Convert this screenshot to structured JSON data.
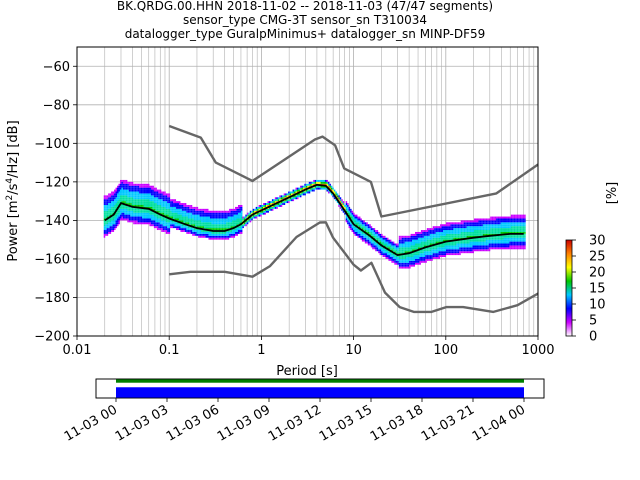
{
  "chart_data": {
    "type": "heatmap",
    "title_lines": [
      "BK.QRDG.00.HHN   2018-11-02 -- 2018-11-03  (47/47 segments)",
      "sensor_type CMG-3T sensor_sn T310034",
      "datalogger_type GuralpMinimus+ datalogger_sn MINP-DF59"
    ],
    "xlabel": "Period [s]",
    "ylabel_pre": "Power [m",
    "ylabel_sup1": "2",
    "ylabel_mid": "/s",
    "ylabel_sup2": "4",
    "ylabel_post": "/Hz] [dB]",
    "x_scale": "log",
    "xlim": [
      0.01,
      1000
    ],
    "ylim": [
      -200,
      -50
    ],
    "x_ticks": [
      0.01,
      0.1,
      1,
      10,
      100,
      1000
    ],
    "x_tick_labels": [
      "0.01",
      "0.1",
      "1",
      "10",
      "100",
      "1000"
    ],
    "y_ticks": [
      -200,
      -180,
      -160,
      -140,
      -120,
      -100,
      -80,
      -60
    ],
    "y_tick_labels": [
      "−200",
      "−180",
      "−160",
      "−140",
      "−120",
      "−100",
      "−80",
      "−60"
    ],
    "grid": true,
    "colorbar": {
      "label": "[%]",
      "range": [
        0,
        30
      ],
      "ticks": [
        0,
        5,
        10,
        15,
        20,
        25,
        30
      ],
      "tick_labels": [
        "0",
        "5",
        "10",
        "15",
        "20",
        "25",
        "30"
      ],
      "colors": [
        "#ffffff",
        "#cc00ff",
        "#0000ff",
        "#00c8ff",
        "#00c800",
        "#ffff00",
        "#ff8000",
        "#cc0000"
      ]
    },
    "noise_models": [
      {
        "name": "NHNM",
        "color": "#666666",
        "points": [
          [
            0.1,
            -91
          ],
          [
            0.22,
            -97
          ],
          [
            0.32,
            -110
          ],
          [
            0.8,
            -119.5
          ],
          [
            3.8,
            -98
          ],
          [
            4.6,
            -96.5
          ],
          [
            6.3,
            -101
          ],
          [
            7.9,
            -113
          ],
          [
            15.4,
            -120
          ],
          [
            20,
            -138
          ],
          [
            354,
            -126
          ],
          [
            1000,
            -111
          ]
        ]
      },
      {
        "name": "NLNM",
        "color": "#666666",
        "points": [
          [
            0.1,
            -168
          ],
          [
            0.17,
            -166.7
          ],
          [
            0.4,
            -166.7
          ],
          [
            0.8,
            -169.2
          ],
          [
            1.24,
            -163.7
          ],
          [
            2.4,
            -148.6
          ],
          [
            4.3,
            -141.1
          ],
          [
            5,
            -141
          ],
          [
            6,
            -149
          ],
          [
            10,
            -163
          ],
          [
            12,
            -166
          ],
          [
            15.6,
            -162
          ],
          [
            21.9,
            -177.5
          ],
          [
            31.6,
            -185
          ],
          [
            45,
            -187.5
          ],
          [
            70,
            -187.5
          ],
          [
            101,
            -185
          ],
          [
            154,
            -185
          ],
          [
            328,
            -187.5
          ],
          [
            600,
            -184
          ],
          [
            1000,
            -178
          ]
        ]
      }
    ],
    "mean_curve": {
      "color": "#000000",
      "points": [
        [
          0.02,
          -140
        ],
        [
          0.025,
          -137
        ],
        [
          0.03,
          -131
        ],
        [
          0.04,
          -133
        ],
        [
          0.06,
          -134
        ],
        [
          0.08,
          -137
        ],
        [
          0.1,
          -139
        ],
        [
          0.15,
          -142
        ],
        [
          0.2,
          -144
        ],
        [
          0.3,
          -145.5
        ],
        [
          0.4,
          -145.5
        ],
        [
          0.5,
          -144
        ],
        [
          0.6,
          -142
        ],
        [
          0.8,
          -137
        ],
        [
          1.2,
          -133
        ],
        [
          2,
          -128
        ],
        [
          3,
          -124
        ],
        [
          4,
          -121.5
        ],
        [
          5,
          -122
        ],
        [
          6,
          -126
        ],
        [
          8,
          -135
        ],
        [
          10,
          -142
        ],
        [
          15,
          -148
        ],
        [
          20,
          -153
        ],
        [
          30,
          -158
        ],
        [
          40,
          -157
        ],
        [
          60,
          -154
        ],
        [
          100,
          -151
        ],
        [
          200,
          -149
        ],
        [
          300,
          -148
        ],
        [
          500,
          -147
        ],
        [
          700,
          -147
        ]
      ]
    },
    "timeline": {
      "tick_labels": [
        "11-03 00",
        "11-03 03",
        "11-03 06",
        "11-03 09",
        "11-03 12",
        "11-03 15",
        "11-03 18",
        "11-03 21",
        "11-04 00"
      ],
      "bars": [
        {
          "color": "#008000",
          "from": 0,
          "to": 24
        },
        {
          "color": "#0000ff",
          "from": 0,
          "to": 24
        }
      ]
    }
  }
}
